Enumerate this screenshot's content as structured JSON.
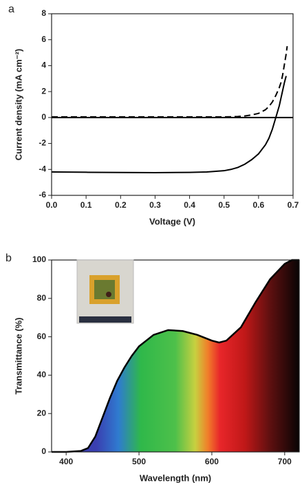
{
  "chart_data": [
    {
      "type": "line",
      "label": "a",
      "xlabel": "Voltage (V)",
      "ylabel": "Current density (mA cm⁻²)",
      "xlim": [
        0,
        0.7
      ],
      "ylim": [
        -6,
        8
      ],
      "xticks": [
        {
          "value": 0,
          "label": "0.0"
        },
        0.1,
        0.2,
        0.3,
        0.4,
        0.5,
        0.6,
        0.7
      ],
      "yticks": [
        -6,
        -4,
        -2,
        0,
        2,
        4,
        6,
        8
      ],
      "x": [
        0,
        0.1,
        0.2,
        0.3,
        0.4,
        0.45,
        0.5,
        0.52,
        0.54,
        0.56,
        0.58,
        0.6,
        0.62,
        0.63,
        0.64,
        0.65,
        0.66,
        0.665,
        0.67,
        0.675,
        0.68,
        0.683
      ],
      "series": [
        {
          "color": "#000000",
          "dash": false,
          "values": [
            -4.2,
            -4.22,
            -4.24,
            -4.25,
            -4.23,
            -4.2,
            -4.1,
            -4.0,
            -3.85,
            -3.6,
            -3.25,
            -2.8,
            -2.1,
            -1.6,
            -0.9,
            0,
            0.9,
            1.5,
            2.1,
            2.7,
            3.2,
            null
          ]
        },
        {
          "color": "#000000",
          "dash": true,
          "values": [
            0.05,
            0.05,
            0.05,
            0.05,
            0.05,
            0.05,
            0.05,
            0.06,
            0.08,
            0.12,
            0.2,
            0.32,
            0.6,
            0.85,
            1.2,
            1.7,
            2.3,
            2.7,
            3.3,
            4.1,
            4.9,
            5.5
          ]
        }
      ]
    },
    {
      "type": "area",
      "label": "b",
      "xlabel": "Wavelength (nm)",
      "ylabel": "Transmittance (%)",
      "xlim": [
        380,
        720
      ],
      "ylim": [
        0,
        100
      ],
      "xticks": [
        400,
        500,
        600,
        700
      ],
      "yticks": [
        0,
        20,
        40,
        60,
        80,
        100
      ],
      "x": [
        380,
        400,
        420,
        430,
        440,
        450,
        460,
        470,
        480,
        490,
        500,
        520,
        540,
        560,
        580,
        600,
        610,
        620,
        640,
        660,
        680,
        700,
        710,
        720
      ],
      "series": [
        {
          "color": "#000000",
          "values": [
            0,
            0,
            0.5,
            2,
            8,
            18,
            28,
            37,
            44,
            50,
            55,
            61,
            63.5,
            63,
            61,
            58,
            57,
            58,
            65,
            78,
            90,
            98,
            100,
            100
          ]
        }
      ]
    }
  ]
}
